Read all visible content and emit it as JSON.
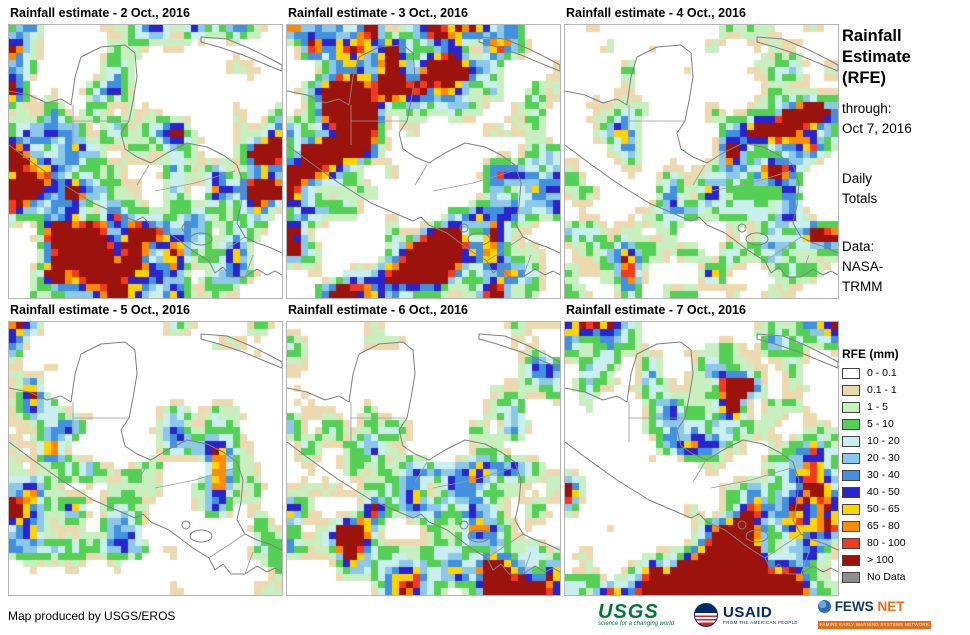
{
  "panels": [
    {
      "title": "Rainfall estimate - 2 Oct., 2016"
    },
    {
      "title": "Rainfall estimate - 3 Oct., 2016"
    },
    {
      "title": "Rainfall estimate - 4 Oct., 2016"
    },
    {
      "title": "Rainfall estimate - 5 Oct., 2016"
    },
    {
      "title": "Rainfall estimate - 6 Oct., 2016"
    },
    {
      "title": "Rainfall estimate - 7 Oct., 2016"
    }
  ],
  "sidebar": {
    "title_lines": [
      "Rainfall",
      "Estimate",
      "(RFE)"
    ],
    "through_label": "through:",
    "through_date": "Oct 7, 2016",
    "totals_lines": [
      "Daily",
      "Totals"
    ],
    "data_label": "Data:",
    "data_lines": [
      "NASA-",
      "TRMM"
    ]
  },
  "legend": {
    "title": "RFE (mm)",
    "entries": [
      {
        "label": "0 - 0.1",
        "color": "#FFFFFF"
      },
      {
        "label": "0.1 - 1",
        "color": "#ECD9B0"
      },
      {
        "label": "1 - 5",
        "color": "#C8EFC0"
      },
      {
        "label": "5 - 10",
        "color": "#54D054"
      },
      {
        "label": "10 - 20",
        "color": "#C9EFEE"
      },
      {
        "label": "20 - 30",
        "color": "#8CC8EA"
      },
      {
        "label": "30 - 40",
        "color": "#4191E0"
      },
      {
        "label": "40 - 50",
        "color": "#2A24CF"
      },
      {
        "label": "50 - 65",
        "color": "#FFD400"
      },
      {
        "label": "65 - 80",
        "color": "#FF8C00"
      },
      {
        "label": "80 - 100",
        "color": "#F43A1E"
      },
      {
        "label": "> 100",
        "color": "#9C120C"
      },
      {
        "label": "No Data",
        "color": "#8E8E8E"
      }
    ]
  },
  "footer": {
    "credit": "Map produced by USGS/EROS"
  },
  "logos": {
    "usgs": {
      "name": "USGS",
      "tagline": "science for a changing world"
    },
    "usaid": {
      "name": "USAID",
      "tagline": "FROM THE AMERICAN PEOPLE"
    },
    "fewsnet": {
      "name_primary": "FEWS",
      "name_secondary": "NET",
      "tagline": "FAMINE EARLY WARNING SYSTEMS NETWORK"
    }
  }
}
